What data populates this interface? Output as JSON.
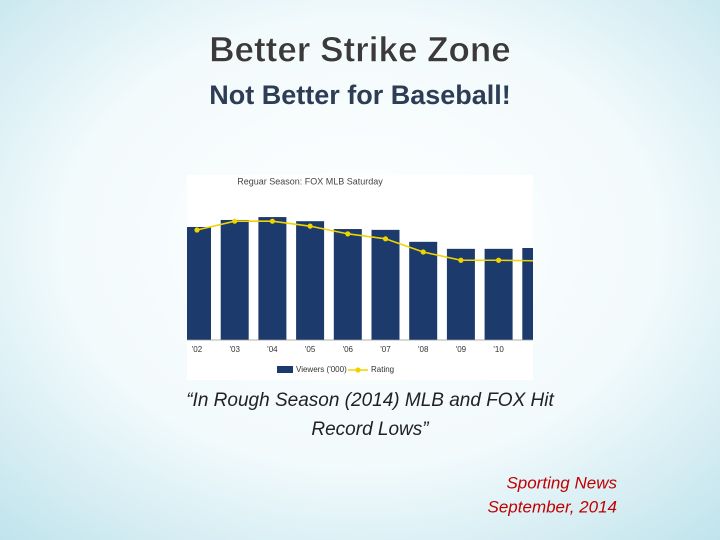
{
  "slide": {
    "title": "Better Strike Zone",
    "subtitle": "Not Better for Baseball!",
    "quote": [
      "“In Rough Season (2014) MLB and FOX Hit",
      "Record Lows”"
    ],
    "source": [
      "Sporting News",
      "September, 2014"
    ]
  },
  "chart_data": {
    "type": "bar-line",
    "title": "Reguar Season: FOX MLB Saturday",
    "categories": [
      "'02",
      "'03",
      "'04",
      "'05",
      "'06",
      "'07",
      "'08",
      "'09",
      "'10",
      null
    ],
    "series": [
      {
        "name": "Viewers ('000)",
        "color": "#1c3a6b",
        "values": [
          2740,
          2910,
          2980,
          2880,
          2690,
          2670,
          2380,
          2210,
          2210,
          2230
        ]
      },
      {
        "name": "Rating",
        "color": "#f0d400",
        "axis": "y2",
        "values": [
          2.0,
          2.16,
          2.16,
          2.07,
          1.93,
          1.84,
          1.6,
          1.45,
          1.45,
          1.44
        ]
      }
    ],
    "ylim": [
      0,
      4000
    ],
    "y2lim": [
      0,
      3
    ]
  }
}
